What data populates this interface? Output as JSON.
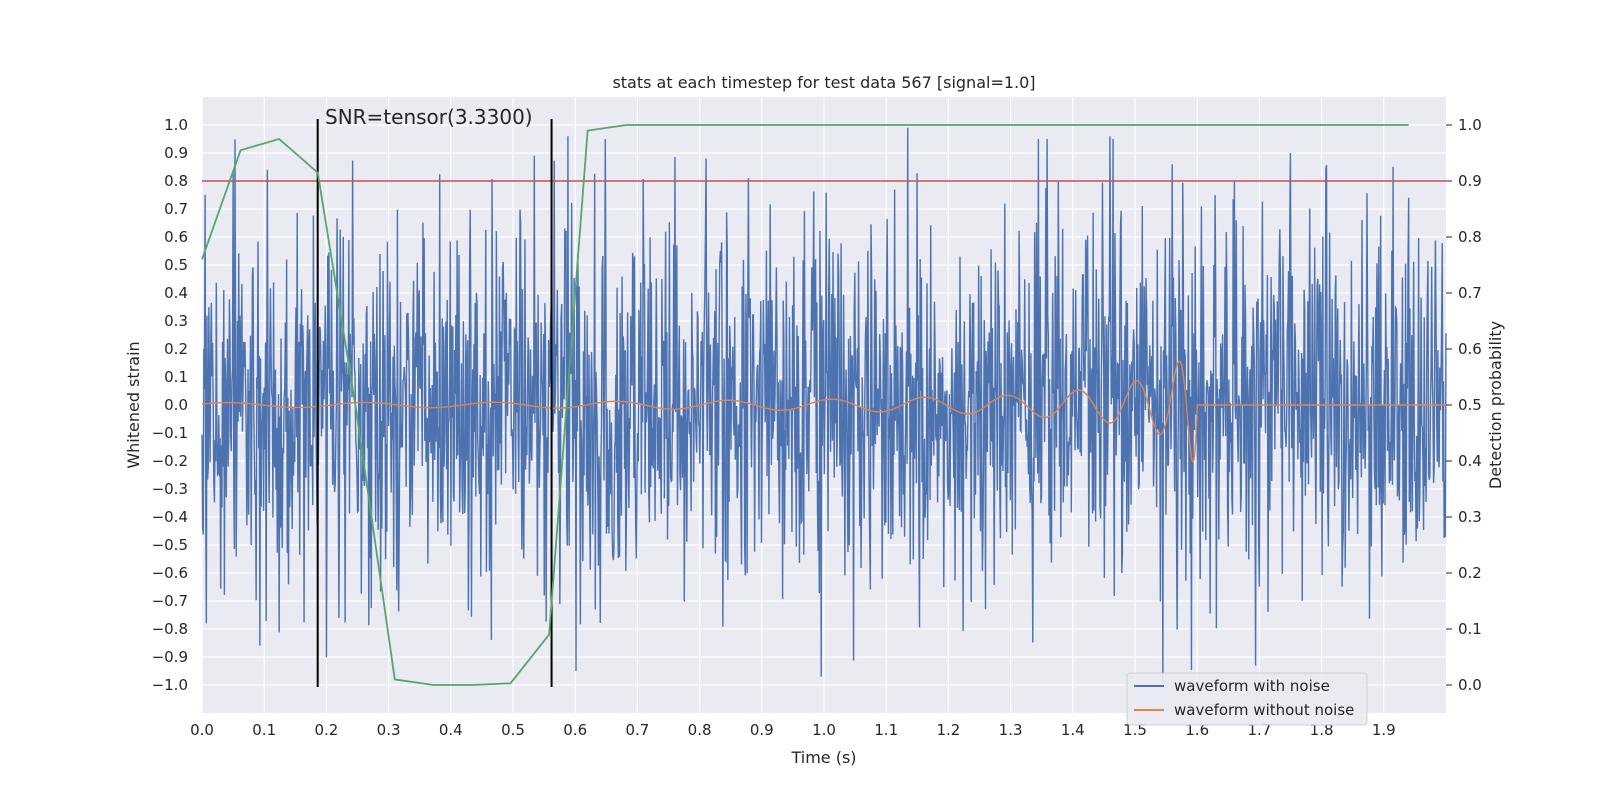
{
  "chart_data": {
    "type": "line",
    "title": "stats at each timestep for test data 567 [signal=1.0]",
    "xlabel": "Time (s)",
    "ylabel": "Whitened strain",
    "y2label": "Detection probability",
    "xlim": [
      0.0,
      2.0
    ],
    "ylim": [
      -1.1,
      1.1
    ],
    "y2lim": [
      -0.05,
      1.05
    ],
    "xticks": [
      "0.0",
      "0.1",
      "0.2",
      "0.3",
      "0.4",
      "0.5",
      "0.6",
      "0.7",
      "0.8",
      "0.9",
      "1.0",
      "1.1",
      "1.2",
      "1.3",
      "1.4",
      "1.5",
      "1.6",
      "1.7",
      "1.8",
      "1.9"
    ],
    "yticks": [
      "1.0",
      "0.9",
      "0.8",
      "0.7",
      "0.6",
      "0.5",
      "0.4",
      "0.3",
      "0.2",
      "0.1",
      "0.0",
      "−0.1",
      "−0.2",
      "−0.3",
      "−0.4",
      "−0.5",
      "−0.6",
      "−0.7",
      "−0.8",
      "−0.9",
      "−1.0"
    ],
    "y2ticks": [
      "1.0",
      "0.9",
      "0.8",
      "0.7",
      "0.6",
      "0.5",
      "0.4",
      "0.3",
      "0.2",
      "0.1",
      "0.0"
    ],
    "annotation": "SNR=tensor(3.3300)",
    "threshold": {
      "value": 0.9,
      "color": "#c44e52"
    },
    "vlines": [
      0.186,
      0.562
    ],
    "series": [
      {
        "name": "waveform with noise",
        "color": "#4c72b0",
        "note": "noisy whitened strain, ~2000 samples, amplitude roughly within [-1, 1]",
        "x_range": [
          0.0,
          2.0
        ],
        "sample_count": 2000,
        "noise_std": 0.32,
        "peaks": [
          {
            "x": 0.007,
            "y": -0.78
          },
          {
            "x": 0.093,
            "y": -0.86
          },
          {
            "x": 0.105,
            "y": 0.84
          },
          {
            "x": 0.588,
            "y": 0.96
          },
          {
            "x": 0.81,
            "y": 0.88
          },
          {
            "x": 0.995,
            "y": -0.97
          },
          {
            "x": 1.135,
            "y": 0.99
          },
          {
            "x": 1.46,
            "y": 0.96
          },
          {
            "x": 1.545,
            "y": -0.99
          },
          {
            "x": 1.75,
            "y": 0.9
          },
          {
            "x": 1.66,
            "y": 0.8
          },
          {
            "x": 1.94,
            "y": 0.74
          }
        ]
      },
      {
        "name": "waveform without noise",
        "color": "#dd8452",
        "note": "chirp signal, merger near 1.6 s",
        "merger_time": 1.6,
        "amplitude_envelope": [
          {
            "x": 0.0,
            "y": 0.008
          },
          {
            "x": 0.5,
            "y": 0.01
          },
          {
            "x": 1.0,
            "y": 0.02
          },
          {
            "x": 1.3,
            "y": 0.035
          },
          {
            "x": 1.45,
            "y": 0.06
          },
          {
            "x": 1.55,
            "y": 0.11
          },
          {
            "x": 1.59,
            "y": 0.2
          },
          {
            "x": 1.6,
            "y": 0.21
          }
        ]
      },
      {
        "name": "detection probability",
        "color": "#55a868",
        "axis": "right",
        "x": [
          0.0,
          0.062,
          0.124,
          0.186,
          0.248,
          0.31,
          0.372,
          0.434,
          0.496,
          0.558,
          0.62,
          0.682,
          0.744,
          0.806,
          0.868,
          0.93,
          0.992,
          1.054,
          1.116,
          1.178,
          1.24,
          1.302,
          1.364,
          1.426,
          1.488,
          1.55,
          1.612,
          1.674,
          1.736,
          1.798,
          1.86,
          1.94
        ],
        "y": [
          0.76,
          0.955,
          0.975,
          0.915,
          0.49,
          0.01,
          0.0,
          0.0,
          0.003,
          0.09,
          0.99,
          1.0,
          1.0,
          1.0,
          1.0,
          1.0,
          1.0,
          1.0,
          1.0,
          1.0,
          1.0,
          1.0,
          1.0,
          1.0,
          1.0,
          1.0,
          1.0,
          1.0,
          1.0,
          1.0,
          1.0,
          1.0
        ]
      }
    ],
    "legend": {
      "position": "bottom-right",
      "entries": [
        {
          "label": "waveform with noise",
          "color": "#4c72b0"
        },
        {
          "label": "waveform without noise",
          "color": "#dd8452"
        }
      ]
    },
    "style": {
      "background": "#eaeaf2",
      "grid": "#ffffff"
    }
  }
}
